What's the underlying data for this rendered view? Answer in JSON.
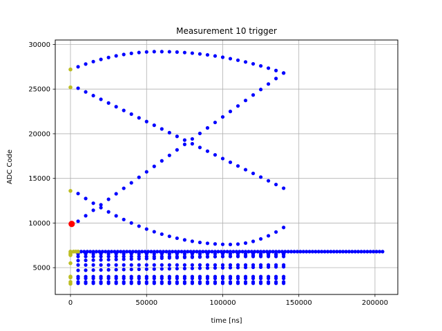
{
  "chart_data": {
    "type": "scatter",
    "title": "Measurement 10 trigger",
    "xlabel": "time [ns]",
    "ylabel": "ADC Code",
    "xlim": [
      -10000,
      215000
    ],
    "ylim": [
      2000,
      30500
    ],
    "xticks": [
      0,
      50000,
      100000,
      150000,
      200000
    ],
    "yticks": [
      5000,
      10000,
      15000,
      20000,
      25000,
      30000
    ],
    "xtick_labels": [
      "0",
      "50000",
      "100000",
      "150000",
      "200000"
    ],
    "ytick_labels": [
      "5000",
      "10000",
      "15000",
      "20000",
      "25000",
      "30000"
    ],
    "grid": true,
    "colors": {
      "main": "#0000ff",
      "initial": "#bcbd22",
      "trigger": "#ff0000"
    },
    "initial_points": {
      "x": [
        0,
        0,
        0,
        0,
        0,
        0,
        0,
        0,
        0,
        0,
        0,
        2000,
        3500,
        5000,
        0,
        0
      ],
      "y": [
        27200,
        25200,
        13600,
        6800,
        6750,
        6600,
        6400,
        5500,
        4000,
        3900,
        3400,
        6800,
        6800,
        6800,
        6500,
        3200
      ]
    },
    "trigger_point": {
      "x": 800,
      "y": 9900
    },
    "series": [
      {
        "pattern": "arc",
        "x_start": 5000,
        "x_end": 140000,
        "step": 5000,
        "y_start": 27500,
        "y_peak": 29200,
        "x_peak": 58000,
        "y_end": 26800,
        "note": "upper arc"
      },
      {
        "pattern": "linear",
        "x_start": 5000,
        "x_end": 140000,
        "step": 5000,
        "y_start": 10200,
        "y_end": 26800
      },
      {
        "pattern": "linear",
        "x_start": 5000,
        "x_end": 140000,
        "step": 5000,
        "y_start": 25100,
        "y_end": 13900
      },
      {
        "pattern": "arc",
        "x_start": 5000,
        "x_end": 140000,
        "step": 5000,
        "y_start": 13300,
        "y_peak": 7600,
        "x_peak": 105000,
        "y_end": 9500,
        "note": "lower arc"
      },
      {
        "pattern": "flat",
        "x_start": 5000,
        "x_end": 205000,
        "step": 2000,
        "y": 6800
      },
      {
        "pattern": "flat",
        "x_start": 5000,
        "x_end": 140000,
        "step": 5000,
        "y": 6550
      },
      {
        "pattern": "flat",
        "x_start": 5000,
        "x_end": 140000,
        "step": 5000,
        "y": 6250
      },
      {
        "pattern": "linear",
        "x_start": 5000,
        "x_end": 140000,
        "step": 5000,
        "y_start": 5800,
        "y_end": 6450
      },
      {
        "pattern": "flat",
        "x_start": 5000,
        "x_end": 140000,
        "step": 5000,
        "y": 5300
      },
      {
        "pattern": "linear",
        "x_start": 5000,
        "x_end": 140000,
        "step": 5000,
        "y_start": 4700,
        "y_end": 5100
      },
      {
        "pattern": "flat",
        "x_start": 5000,
        "x_end": 140000,
        "step": 5000,
        "y": 4000
      },
      {
        "pattern": "flat",
        "x_start": 5000,
        "x_end": 140000,
        "step": 5000,
        "y": 3800
      },
      {
        "pattern": "flat",
        "x_start": 5000,
        "x_end": 140000,
        "step": 5000,
        "y": 3400
      },
      {
        "pattern": "flat",
        "x_start": 5000,
        "x_end": 140000,
        "step": 5000,
        "y": 3250
      }
    ]
  }
}
